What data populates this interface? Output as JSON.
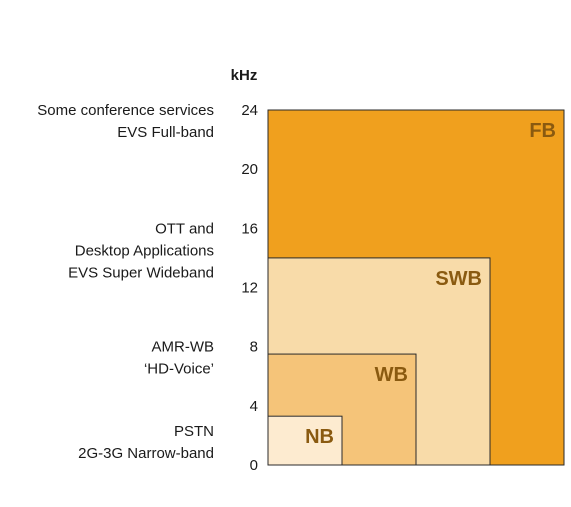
{
  "chart_data": {
    "type": "area",
    "unit": "kHz",
    "ylim": [
      0,
      24
    ],
    "yticks": [
      0,
      4,
      8,
      12,
      16,
      20,
      24
    ],
    "bands": [
      {
        "label": "FB",
        "max_khz": 24,
        "width_fraction": 1.0,
        "fill": "#F0A01E",
        "label_color": "#8A5A10"
      },
      {
        "label": "SWB",
        "max_khz": 14,
        "width_fraction": 0.75,
        "fill": "#F8DBA9",
        "label_color": "#8A5A10"
      },
      {
        "label": "WB",
        "max_khz": 7.5,
        "width_fraction": 0.5,
        "fill": "#F5C479",
        "label_color": "#8A5A10"
      },
      {
        "label": "NB",
        "max_khz": 3.3,
        "width_fraction": 0.25,
        "fill": "#FDEBD0",
        "label_color": "#8A5A10"
      }
    ],
    "annotations": [
      {
        "y_khz": 24,
        "lines": [
          "Some conference services",
          "EVS Full-band"
        ]
      },
      {
        "y_khz": 16,
        "lines": [
          "OTT and",
          "Desktop Applications",
          "EVS Super Wideband"
        ]
      },
      {
        "y_khz": 8,
        "lines": [
          "AMR-WB",
          "‘HD-Voice’"
        ]
      },
      {
        "y_khz": 2.3,
        "lines": [
          "PSTN",
          "2G-3G Narrow-band"
        ]
      }
    ]
  }
}
